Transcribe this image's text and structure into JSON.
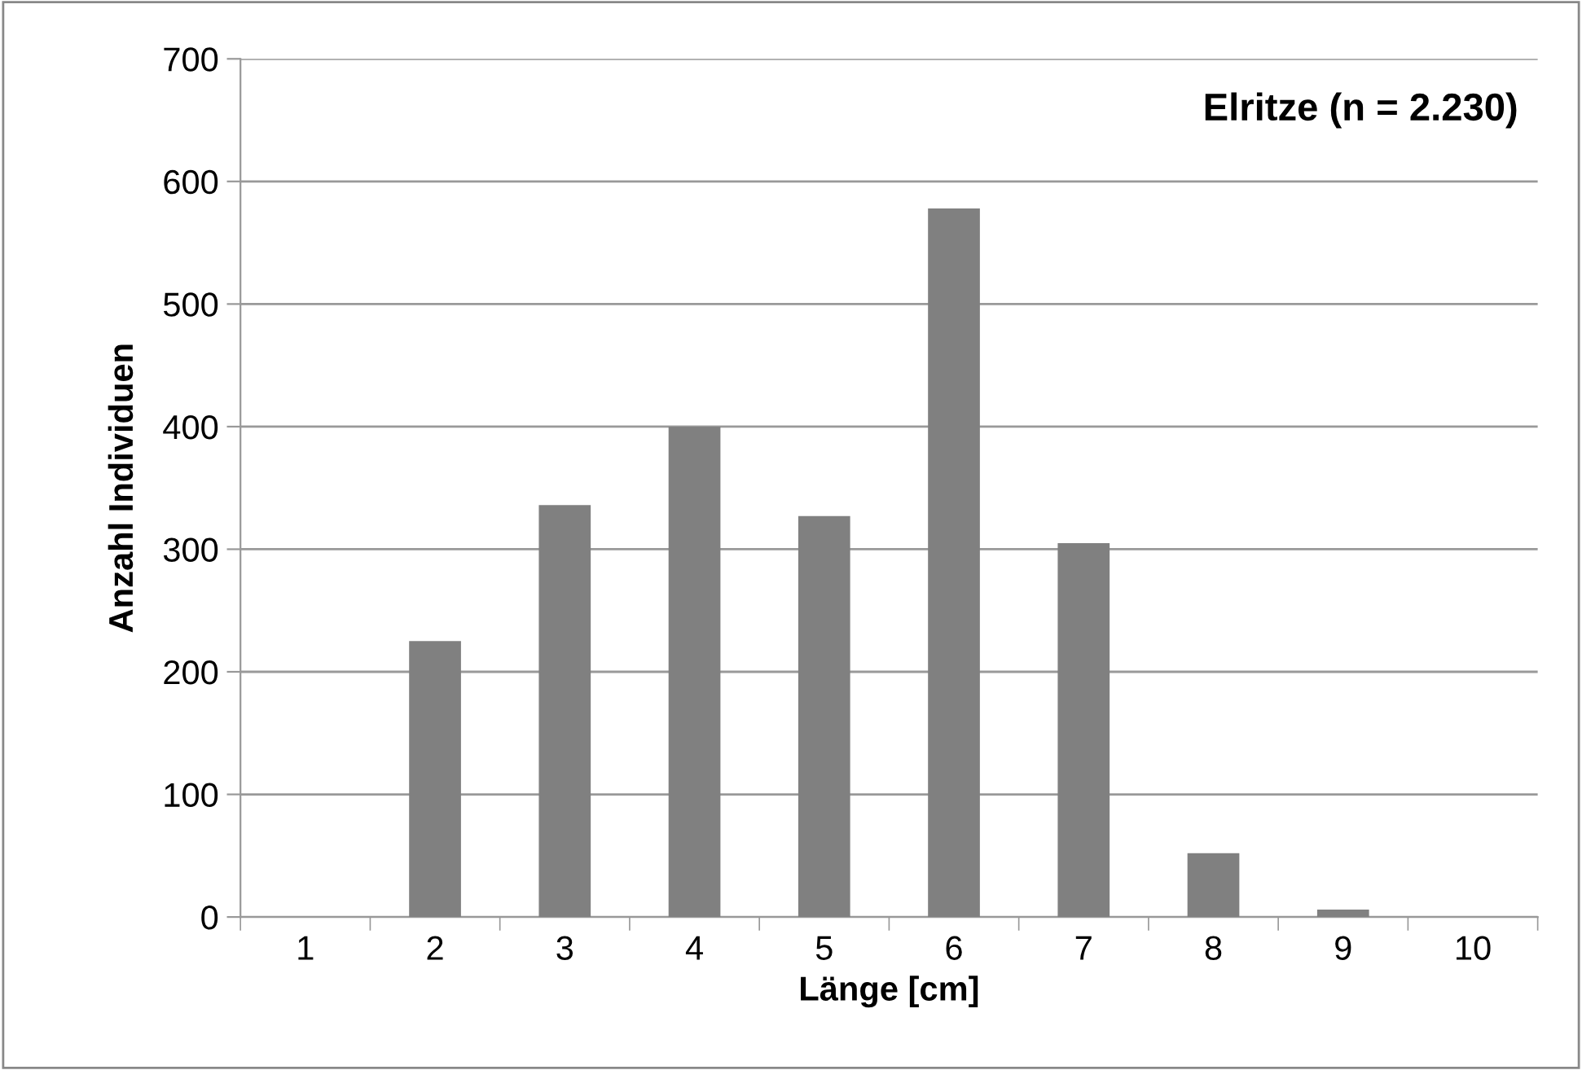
{
  "chart_data": {
    "type": "bar",
    "title": "Elritze (n = 2.230)",
    "xlabel": "Länge [cm]",
    "ylabel": "Anzahl Individuen",
    "categories": [
      "1",
      "2",
      "3",
      "4",
      "5",
      "6",
      "7",
      "8",
      "9",
      "10"
    ],
    "values": [
      0,
      225,
      336,
      400,
      327,
      578,
      305,
      52,
      6,
      0
    ],
    "color": "#808080",
    "ylim": [
      0,
      700
    ],
    "yticks": [
      0,
      100,
      200,
      300,
      400,
      500,
      600,
      700
    ],
    "grid": "y",
    "legend": false
  }
}
